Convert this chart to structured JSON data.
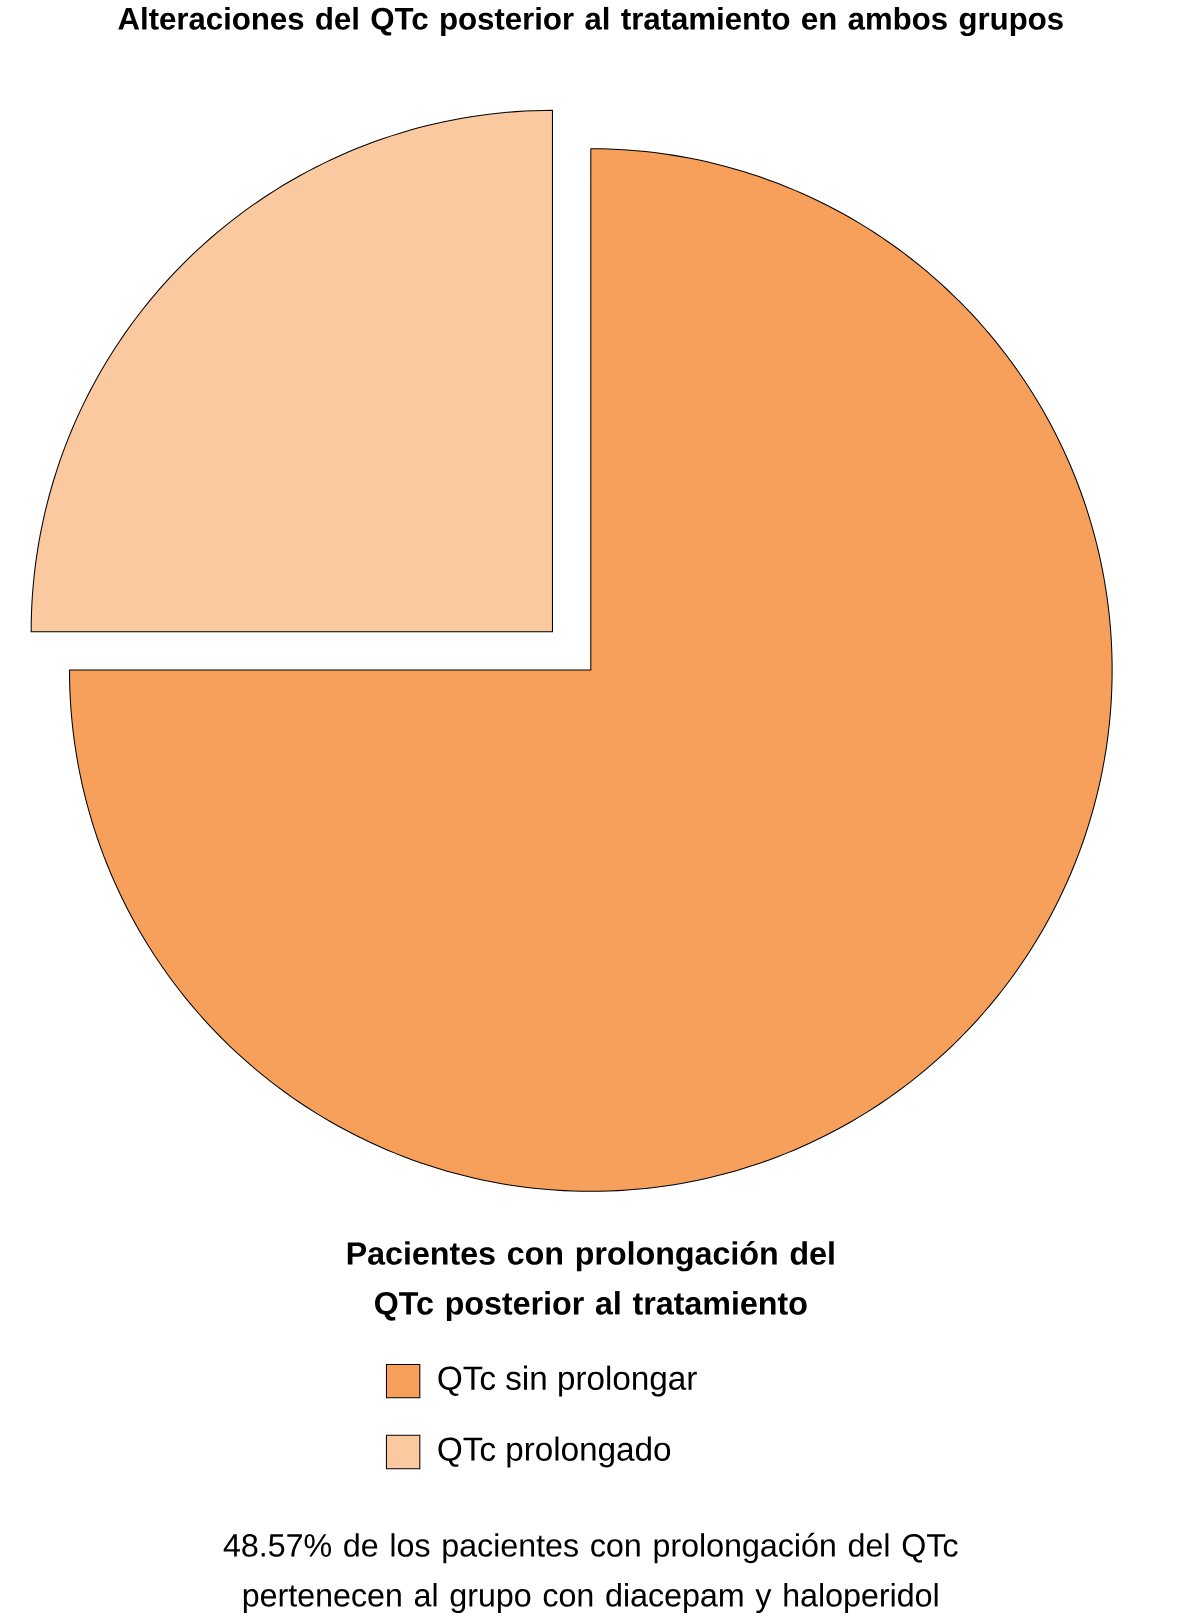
{
  "chart_data": {
    "type": "pie",
    "title": "Alteraciones del QTc posterior al tratamiento en ambos grupos",
    "legend_title": "Pacientes con prolongación del QTc posterior al tratamiento",
    "categories": [
      "QTc sin prolongar",
      "QTc prolongado"
    ],
    "values": [
      75,
      25
    ],
    "colors": [
      "#f7a05b",
      "#fbc9a0"
    ],
    "legend": "bottom",
    "annotations": [
      "48.57% de los pacientes con prolongación del QTc pertenecen al grupo con diacepam y haloperidol"
    ]
  }
}
